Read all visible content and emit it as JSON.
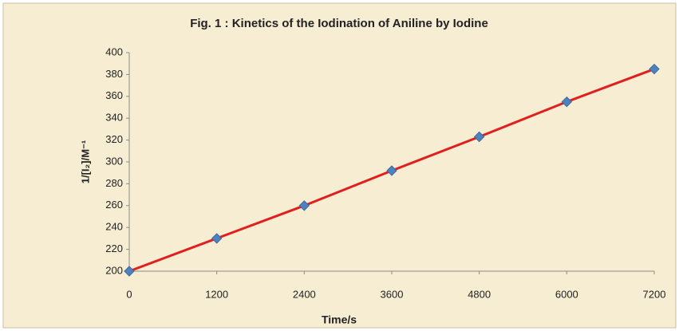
{
  "chart_data": {
    "type": "line",
    "title": "Fig. 1 : Kinetics of the Iodination of Aniline by Iodine",
    "x_label": "Time/s",
    "y_label": "1/[I₂]/M⁻¹",
    "x": [
      0,
      1200,
      2400,
      3600,
      4800,
      6000,
      7200
    ],
    "series": [
      {
        "values": [
          200,
          230,
          260,
          292,
          323,
          355,
          385
        ],
        "color": "#e01f1f",
        "marker_color": "#4f81bd"
      }
    ],
    "xlim": [
      0,
      7200
    ],
    "xticks": [
      0,
      1200,
      2400,
      3600,
      4800,
      6000,
      7200
    ],
    "ylim": [
      200,
      400
    ],
    "yticks": [
      200,
      220,
      240,
      260,
      280,
      300,
      320,
      340,
      360,
      380,
      400
    ],
    "grid": false
  }
}
